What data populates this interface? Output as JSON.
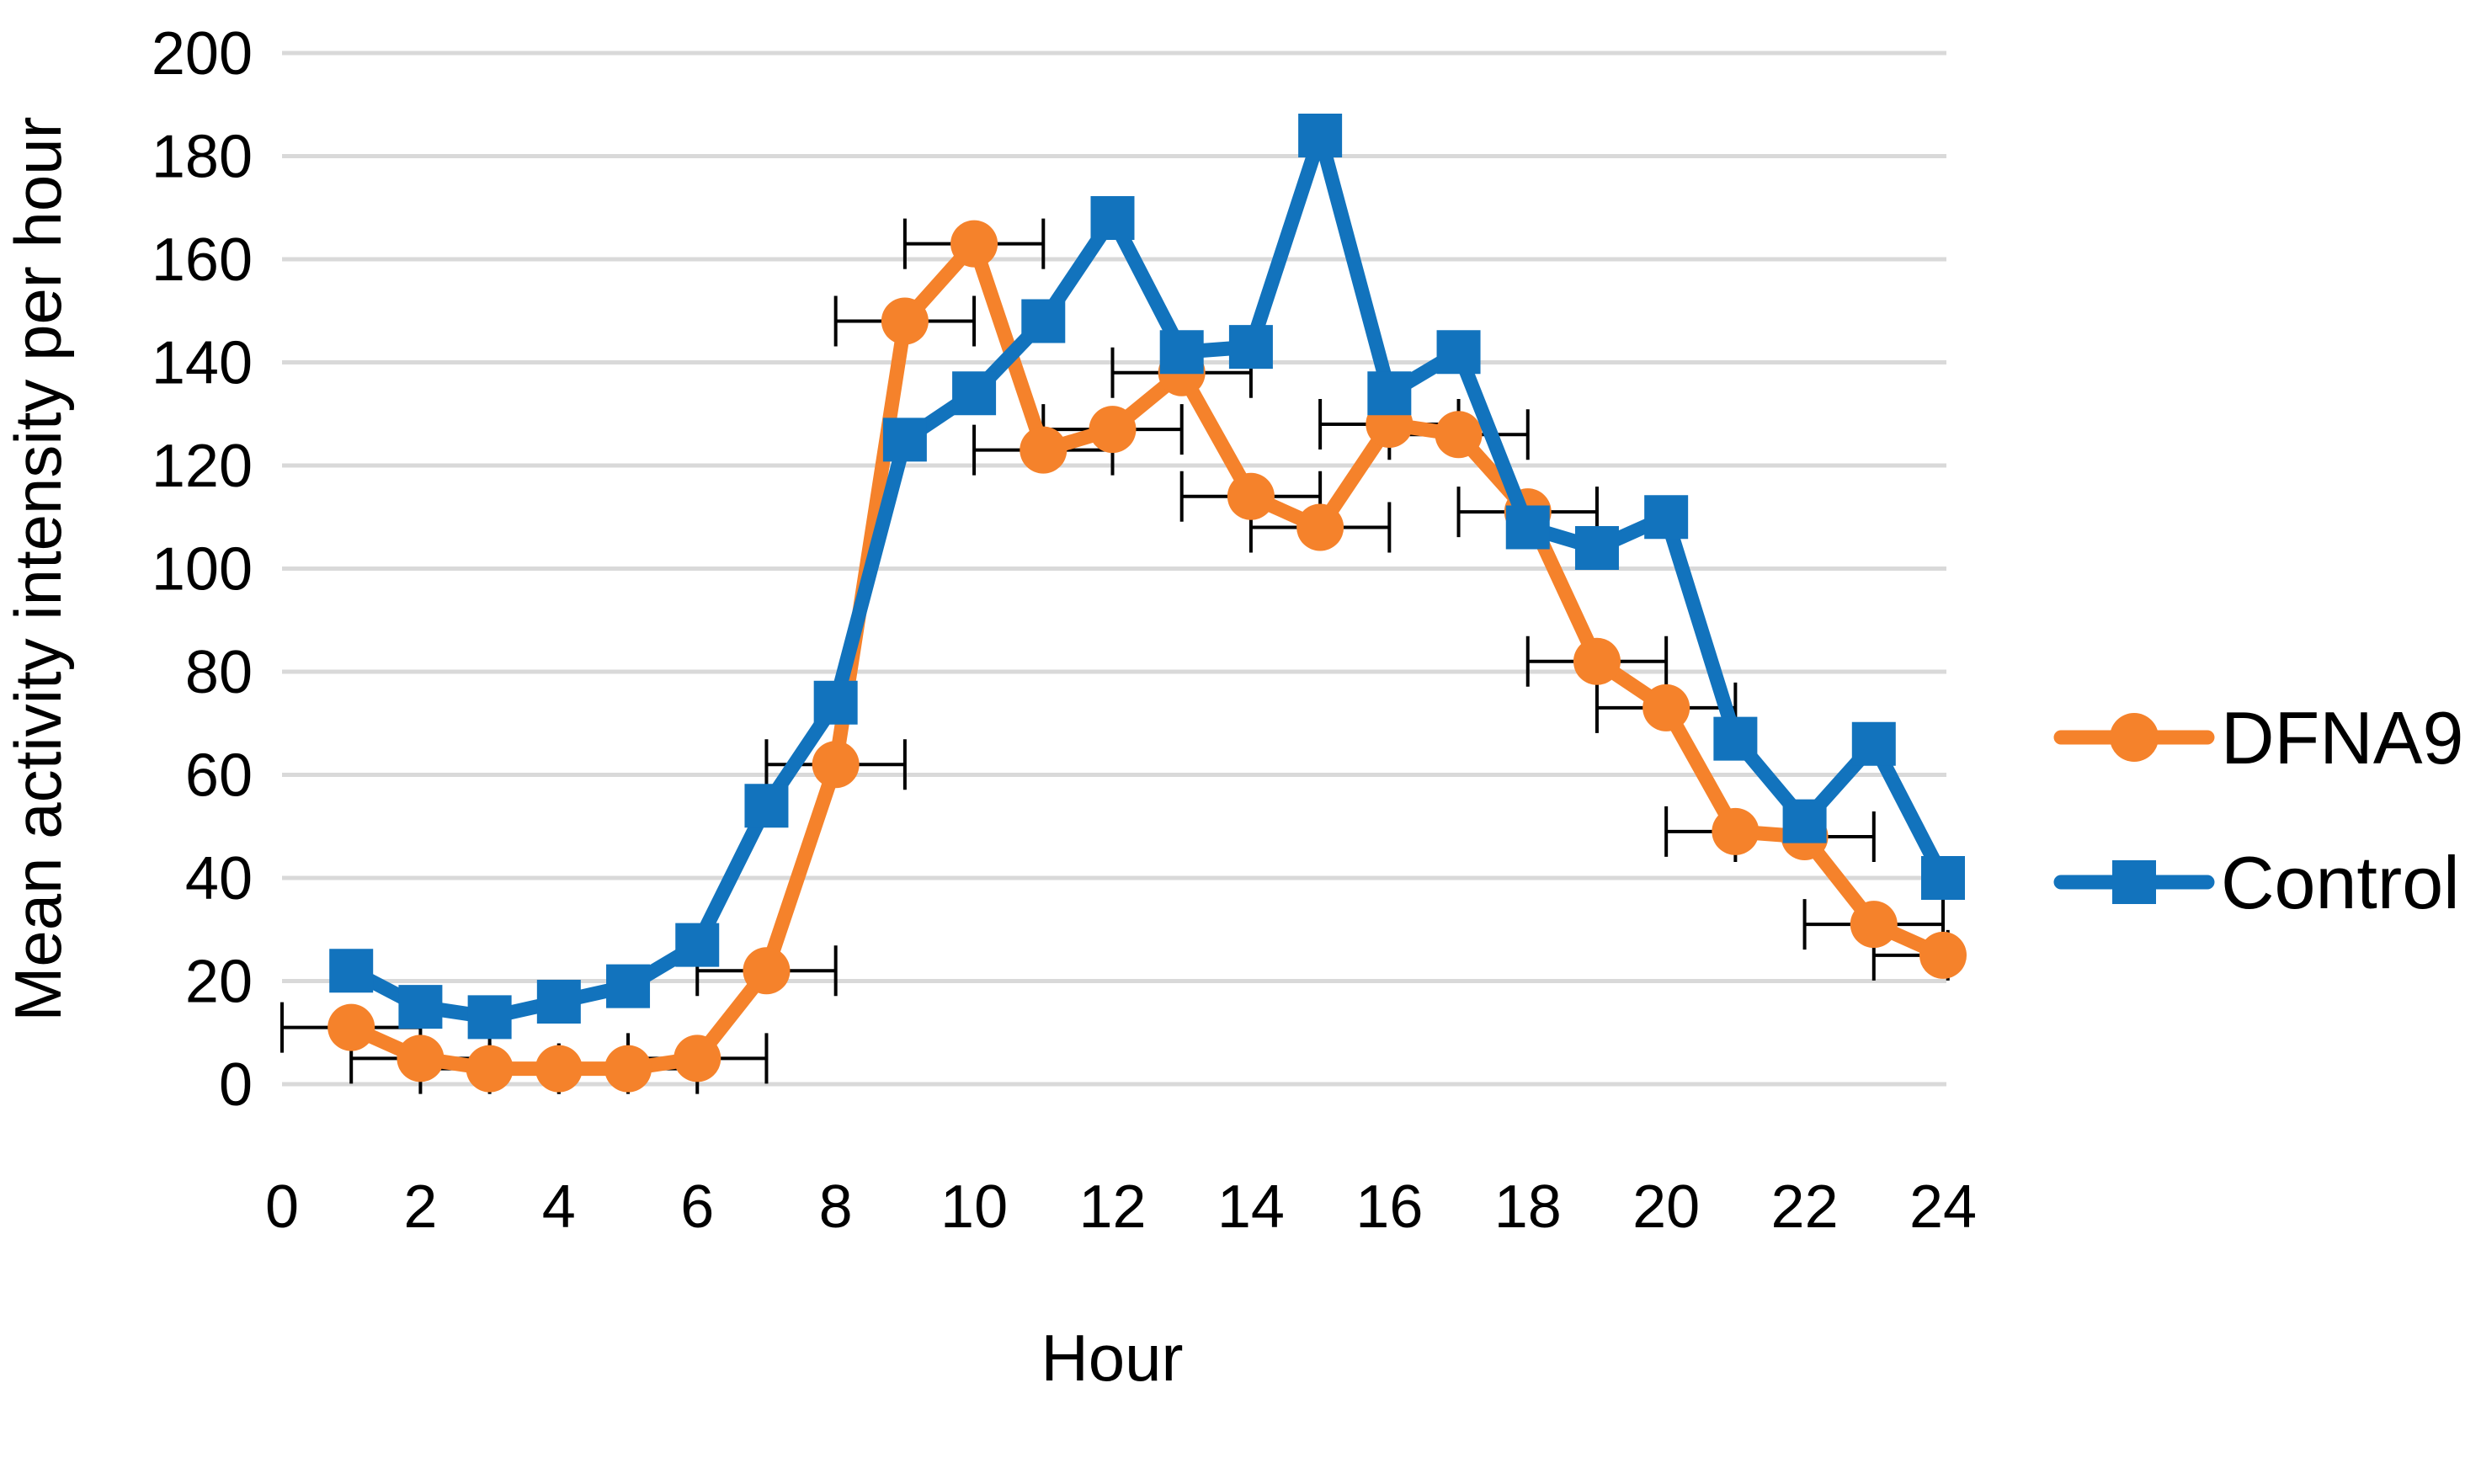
{
  "chart_data": {
    "type": "line",
    "title": "",
    "xlabel": "Hour",
    "ylabel": "Mean activity intensity per hour",
    "xlim": [
      0,
      24
    ],
    "ylim": [
      0,
      200
    ],
    "xticks": [
      0,
      2,
      4,
      6,
      8,
      10,
      12,
      14,
      16,
      18,
      20,
      22,
      24
    ],
    "yticks": [
      0,
      20,
      40,
      60,
      80,
      100,
      120,
      140,
      160,
      180,
      200
    ],
    "grid": "horizontal",
    "gridline_color": "#D9D9D9",
    "text_color": "#000000",
    "legend_position": "right",
    "x": [
      1,
      2,
      3,
      4,
      5,
      6,
      7,
      8,
      9,
      10,
      11,
      12,
      13,
      14,
      15,
      16,
      17,
      18,
      19,
      20,
      21,
      22,
      23,
      24
    ],
    "series": [
      {
        "name": "DFNA9",
        "color": "#F5822B",
        "marker": "circle",
        "values": [
          11,
          5,
          3,
          3,
          3,
          5,
          22,
          62,
          148,
          163,
          123,
          127,
          138,
          114,
          108,
          128,
          126,
          111,
          82,
          73,
          49,
          48,
          31,
          25
        ],
        "x_error": 1,
        "error_bar_color": "#000000"
      },
      {
        "name": "Control",
        "color": "#1273BD",
        "marker": "square",
        "values": [
          22,
          15,
          13,
          16,
          19,
          27,
          54,
          74,
          125,
          134,
          148,
          168,
          142,
          143,
          184,
          134,
          142,
          108,
          104,
          110,
          67,
          51,
          66,
          40
        ]
      }
    ]
  }
}
